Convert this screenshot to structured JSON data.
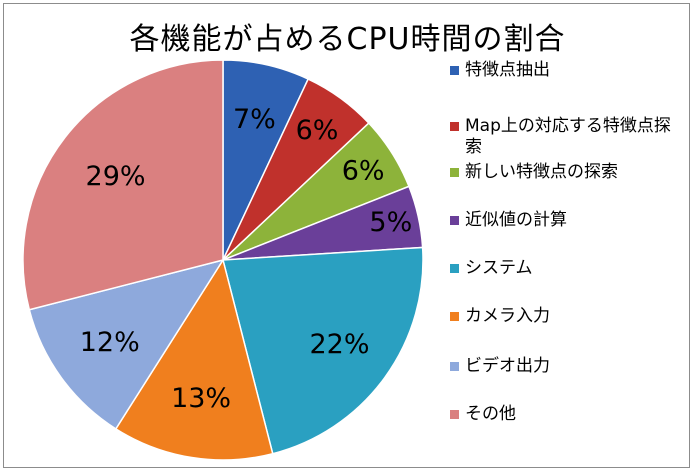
{
  "chart_data": {
    "type": "pie",
    "title": "各機能が占めるCPU時間の割合",
    "slices": [
      {
        "label": "特徴点抽出",
        "value": 7,
        "display": "7%",
        "color": "#2E61B3"
      },
      {
        "label": "Map上の対応する特徴点探索",
        "value": 6,
        "display": "6%",
        "color": "#C0312C"
      },
      {
        "label": "新しい特徴点の探索",
        "value": 6,
        "display": "6%",
        "color": "#8DB33A"
      },
      {
        "label": "近似値の計算",
        "value": 5,
        "display": "5%",
        "color": "#6A3F99"
      },
      {
        "label": "システム",
        "value": 22,
        "display": "22%",
        "color": "#2AA0C1"
      },
      {
        "label": "カメラ入力",
        "value": 13,
        "display": "13%",
        "color": "#F07F1E"
      },
      {
        "label": "ビデオ出力",
        "value": 12,
        "display": "12%",
        "color": "#8EA9DC"
      },
      {
        "label": "その他",
        "value": 29,
        "display": "29%",
        "color": "#DA8080"
      }
    ],
    "legend_position": "right"
  }
}
